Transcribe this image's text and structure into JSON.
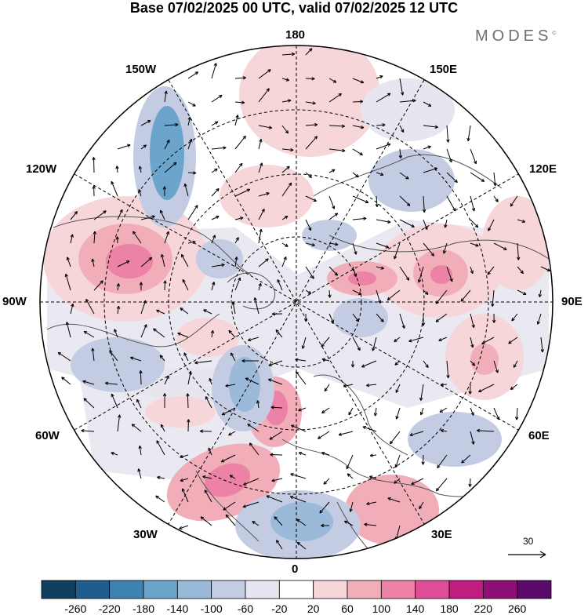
{
  "title": "Base 07/02/2025 00 UTC, valid 07/02/2025 12 UTC",
  "brand": "MODES",
  "brand_mark": "©",
  "longitude_labels": {
    "top": "180",
    "bottom": "0",
    "left": "90W",
    "right": "90E",
    "upper_left_outer": "150W",
    "upper_left_inner": "120W",
    "upper_right_outer": "150E",
    "upper_right_inner": "120E",
    "lower_left_inner": "60W",
    "lower_left_outer": "30W",
    "lower_right_inner": "60E",
    "lower_right_outer": "30E"
  },
  "reference_vector": {
    "label": "30"
  },
  "colorbar": {
    "ticks": [
      "-260",
      "-220",
      "-180",
      "-140",
      "-100",
      "-60",
      "-20",
      "20",
      "60",
      "100",
      "140",
      "180",
      "220",
      "260"
    ],
    "colors": [
      "#0f3f5e",
      "#1d5e8f",
      "#3f83b4",
      "#6ca5cc",
      "#9bb9d9",
      "#c3cce2",
      "#e6e5f0",
      "#ffffff",
      "#f7d6d9",
      "#f1adb8",
      "#ec82a6",
      "#df4f99",
      "#c21c82",
      "#8f0f76",
      "#5a0a6b"
    ]
  },
  "map_colors": {
    "land_outline": "#555555",
    "grid": "#000000",
    "neutral_fill": "#e5e5e5"
  }
}
